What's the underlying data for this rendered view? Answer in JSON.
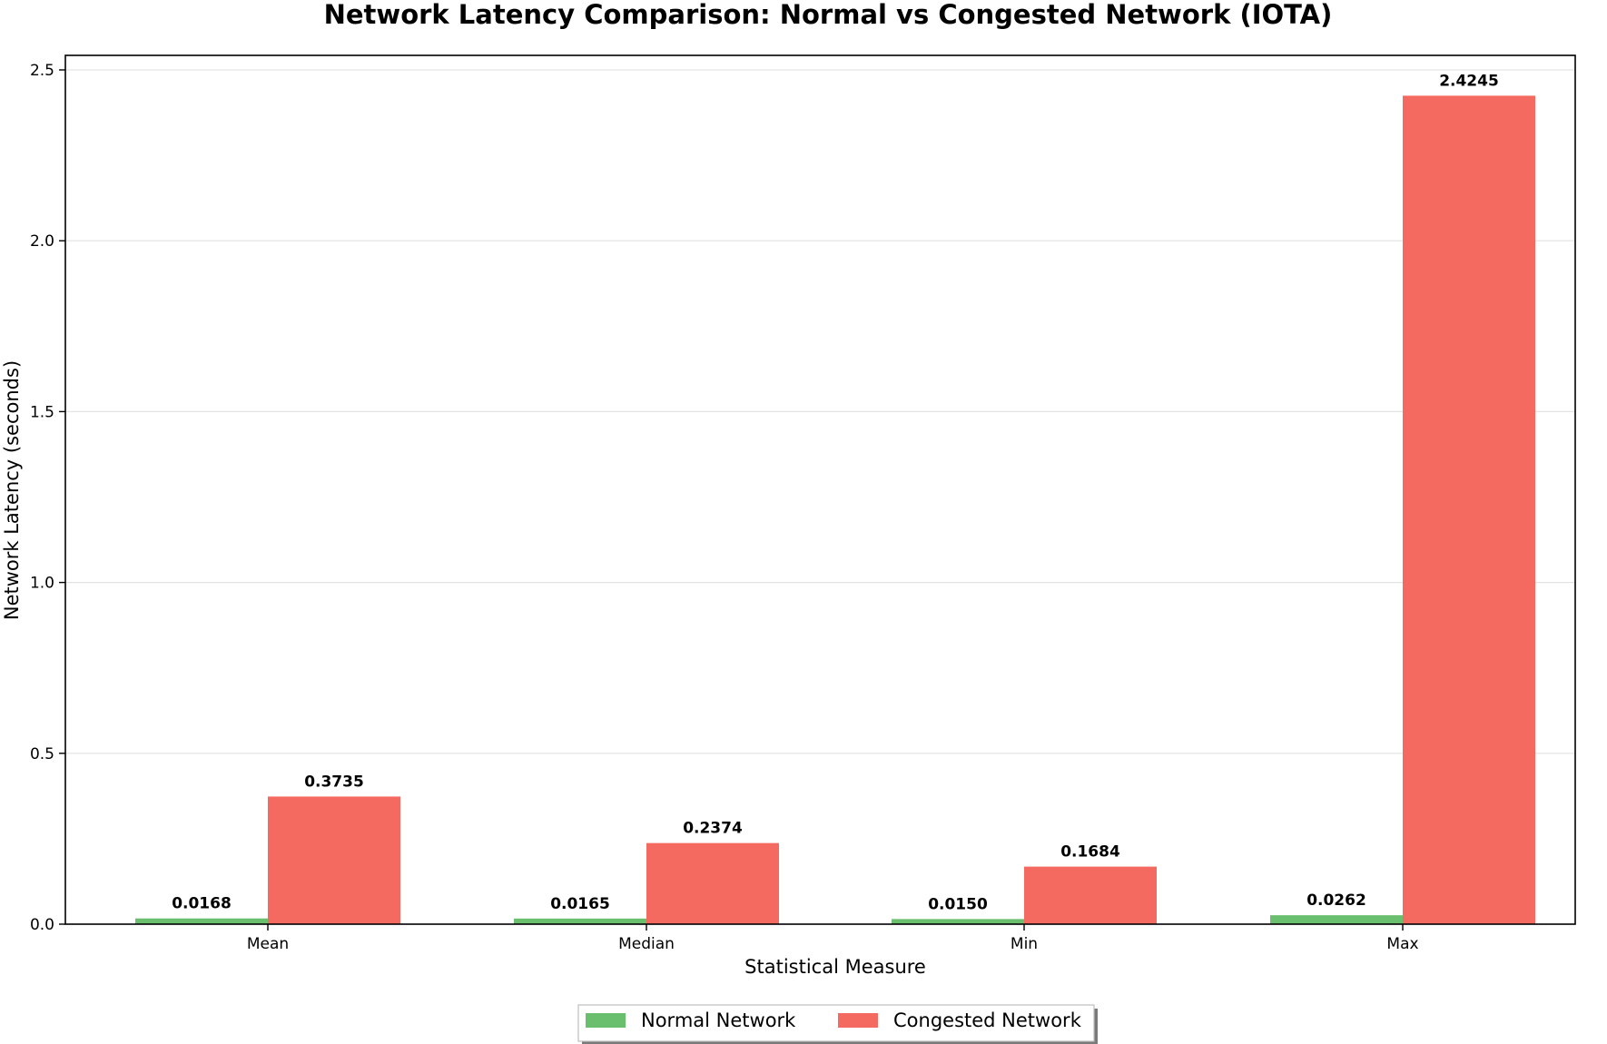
{
  "chart_data": {
    "type": "bar",
    "title": "Network Latency Comparison: Normal vs Congested Network (IOTA)",
    "xlabel": "Statistical Measure",
    "ylabel": "Network Latency (seconds)",
    "categories": [
      "Mean",
      "Median",
      "Min",
      "Max"
    ],
    "ylim": [
      0,
      2.5
    ],
    "yticks": [
      "0.0",
      "0.5",
      "1.0",
      "1.5",
      "2.0",
      "2.5"
    ],
    "ytick_values": [
      0,
      0.5,
      1.0,
      1.5,
      2.0,
      2.5
    ],
    "grid": "horizontal",
    "legend_position": "bottom-center",
    "series": [
      {
        "name": "Normal Network",
        "color": "#6abf6e",
        "values": [
          0.0168,
          0.0165,
          0.015,
          0.0262
        ],
        "labels": [
          "0.0168",
          "0.0165",
          "0.0150",
          "0.0262"
        ]
      },
      {
        "name": "Congested Network",
        "color": "#f56a60",
        "values": [
          0.3735,
          0.2374,
          0.1684,
          2.4245
        ],
        "labels": [
          "0.3735",
          "0.2374",
          "0.1684",
          "2.4245"
        ]
      }
    ]
  }
}
